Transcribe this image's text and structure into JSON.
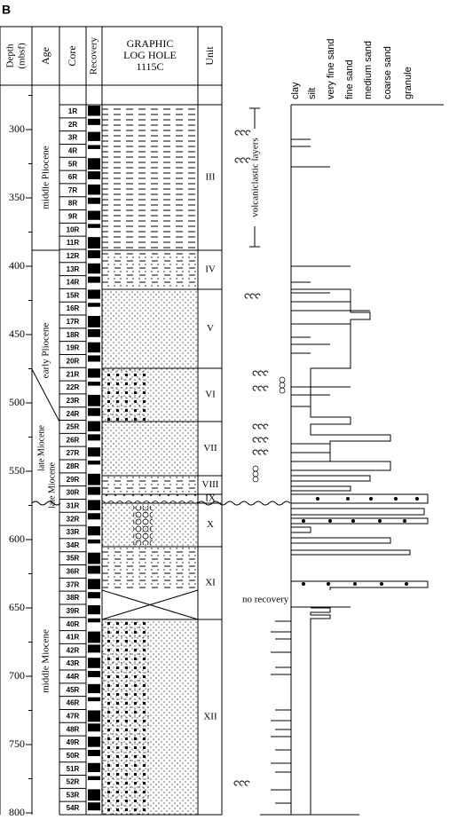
{
  "panel_label": "B",
  "header": {
    "depth": [
      "Depth",
      "(mbsf)"
    ],
    "age": "Age",
    "core": "Core",
    "recovery": "Recovery",
    "graphic_log": [
      "GRAPHIC",
      "LOG HOLE",
      "1115C"
    ],
    "unit": "Unit"
  },
  "grain_sizes": [
    "clay",
    "silt",
    "very fine sand",
    "fine sand",
    "medium sand",
    "coarse sand",
    "granule"
  ],
  "depth_ticks": [
    300,
    350,
    400,
    450,
    500,
    550,
    600,
    650,
    700,
    750,
    800
  ],
  "ages": [
    "middle Pliocene",
    "early Pliocene",
    "late Miocene",
    "late Miocene",
    "middle Miocene"
  ],
  "cores": [
    "1R",
    "2R",
    "3R",
    "4R",
    "5R",
    "6R",
    "7R",
    "8R",
    "9R",
    "10R",
    "11R",
    "12R",
    "13R",
    "14R",
    "15R",
    "16R",
    "17R",
    "18R",
    "19R",
    "20R",
    "21R",
    "22R",
    "23R",
    "24R",
    "25R",
    "26R",
    "27R",
    "28R",
    "29R",
    "30R",
    "31R",
    "32R",
    "33R",
    "34R",
    "35R",
    "36R",
    "37R",
    "38R",
    "39R",
    "40R",
    "41R",
    "42R",
    "43R",
    "44R",
    "45R",
    "46R",
    "47R",
    "48R",
    "49R",
    "50R",
    "51R",
    "52R",
    "53R",
    "54R"
  ],
  "units": [
    "III",
    "IV",
    "V",
    "VI",
    "VII",
    "VIII",
    "IX",
    "X",
    "XI",
    "XII"
  ],
  "annotations": {
    "volcaniclastic_layers": "volcaniclastic layers",
    "no_recovery": "no recovery"
  }
}
